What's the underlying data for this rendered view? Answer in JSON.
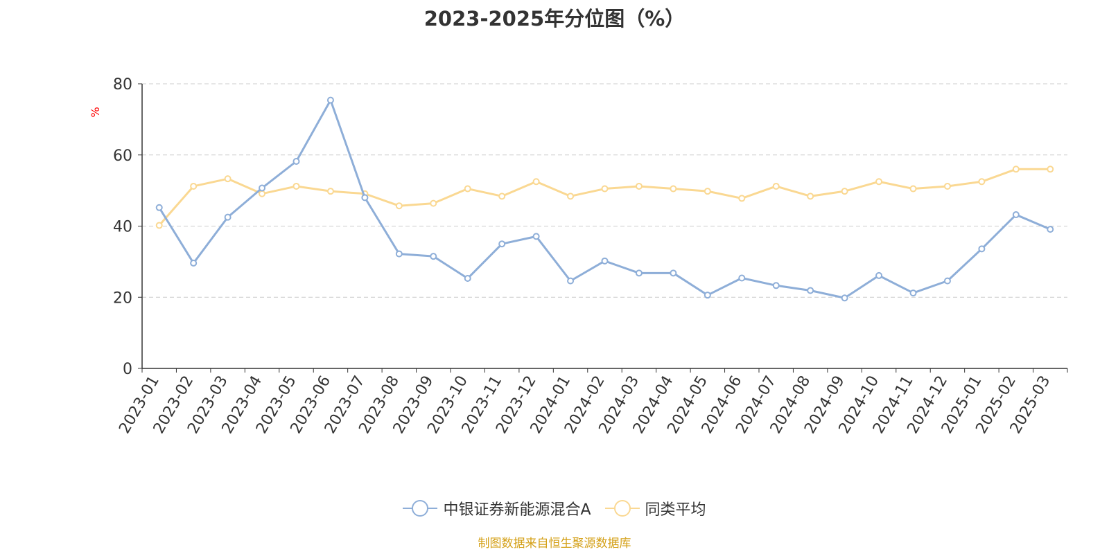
{
  "title": "2023-2025年分位图（%）",
  "source_note": "制图数据来自恒生聚源数据库",
  "colors": {
    "series_a": "#8eaed8",
    "series_b": "#fad892",
    "unit": "#ff0000",
    "axis": "#333333",
    "grid": "#cccccc"
  },
  "chart_data": {
    "type": "line",
    "title": "2023-2025年分位图（%）",
    "ylabel": "%",
    "xlabel": "",
    "ylim": [
      0,
      80
    ],
    "yticks": [
      0,
      20,
      40,
      60,
      80
    ],
    "grid": true,
    "legend_position": "bottom-center",
    "categories": [
      "2023-01",
      "2023-02",
      "2023-03",
      "2023-04",
      "2023-05",
      "2023-06",
      "2023-07",
      "2023-08",
      "2023-09",
      "2023-10",
      "2023-11",
      "2023-12",
      "2024-01",
      "2024-02",
      "2024-03",
      "2024-04",
      "2024-05",
      "2024-06",
      "2024-07",
      "2024-08",
      "2024-09",
      "2024-10",
      "2024-11",
      "2024-12",
      "2025-01",
      "2025-02",
      "2025-03"
    ],
    "series": [
      {
        "name": "中银证券新能源混合A",
        "values": [
          45.2,
          29.6,
          42.5,
          50.7,
          58.2,
          75.4,
          48.0,
          32.2,
          31.5,
          25.3,
          35.0,
          37.1,
          24.6,
          30.2,
          26.8,
          26.8,
          20.6,
          25.4,
          23.3,
          21.9,
          19.8,
          26.1,
          21.2,
          24.6,
          33.6,
          43.2,
          39.1
        ]
      },
      {
        "name": "同类平均",
        "values": [
          40.2,
          51.2,
          53.3,
          49.1,
          51.2,
          49.8,
          49.1,
          45.7,
          46.4,
          50.5,
          48.4,
          52.5,
          48.4,
          50.5,
          51.2,
          50.5,
          49.8,
          47.8,
          51.2,
          48.4,
          49.8,
          52.5,
          50.5,
          51.2,
          52.5,
          56.0,
          56.0
        ]
      }
    ]
  }
}
